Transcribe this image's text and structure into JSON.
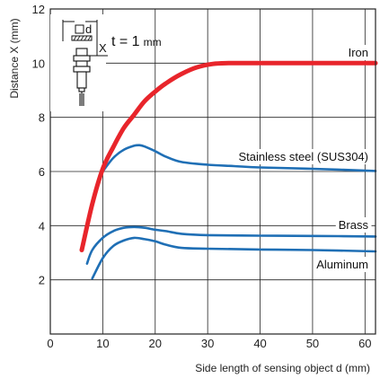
{
  "chart_data": {
    "type": "line",
    "title": "",
    "xlabel": "Side length of sensing object d (mm)",
    "ylabel": "Distance X (mm)",
    "xlim": [
      0,
      62
    ],
    "ylim": [
      0,
      12
    ],
    "xticks": [
      0,
      10,
      20,
      30,
      40,
      50,
      60
    ],
    "yticks": [
      2,
      4,
      6,
      8,
      10,
      12
    ],
    "grid": true,
    "legend": "inline labels",
    "annotation": {
      "t_label": "t = 1",
      "t_unit": "mm",
      "d_label": "d",
      "x_label": "X"
    },
    "series": [
      {
        "name": "Iron",
        "color": "#e8252b",
        "x": [
          6,
          8,
          10,
          12,
          14,
          16,
          18,
          20,
          22,
          25,
          28,
          31,
          34,
          38,
          45,
          52,
          62
        ],
        "y": [
          3.1,
          4.8,
          6.1,
          6.9,
          7.6,
          8.1,
          8.6,
          8.95,
          9.25,
          9.6,
          9.85,
          9.97,
          10.0,
          10.0,
          10.0,
          10.0,
          10.0
        ]
      },
      {
        "name": "Stainless steel (SUS304)",
        "color": "#1f6fb5",
        "x": [
          10,
          12,
          14,
          16,
          17,
          18,
          20,
          22,
          25,
          30,
          35,
          40,
          50,
          62
        ],
        "y": [
          6.0,
          6.5,
          6.8,
          6.95,
          6.97,
          6.92,
          6.75,
          6.55,
          6.35,
          6.25,
          6.2,
          6.15,
          6.1,
          6.02
        ]
      },
      {
        "name": "Brass",
        "color": "#1f6fb5",
        "x": [
          7,
          8,
          10,
          12,
          14,
          16,
          18,
          20,
          22,
          25,
          30,
          40,
          50,
          62
        ],
        "y": [
          2.6,
          3.1,
          3.55,
          3.8,
          3.92,
          3.95,
          3.92,
          3.85,
          3.8,
          3.7,
          3.65,
          3.63,
          3.62,
          3.6
        ]
      },
      {
        "name": "Aluminum",
        "color": "#1f6fb5",
        "x": [
          8,
          10,
          12,
          14,
          16,
          18,
          20,
          22,
          25,
          30,
          40,
          50,
          62
        ],
        "y": [
          2.05,
          2.8,
          3.25,
          3.45,
          3.55,
          3.5,
          3.42,
          3.3,
          3.18,
          3.15,
          3.12,
          3.1,
          3.05
        ]
      }
    ]
  }
}
